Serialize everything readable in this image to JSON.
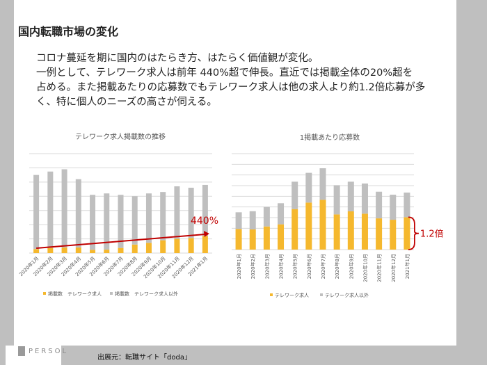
{
  "header": {
    "title": "国内転職市場の変化"
  },
  "body_lines": [
    "コロナ蔓延を期に国内のはたらき方、はたらく価値観が変化。",
    "一例として、テレワーク求人は前年 440%超で伸長。直近では掲載全体の20%超を",
    "占める。また掲載あたりの応募数でもテレワーク求人は他の求人より約1.2倍応募が多",
    "く、特に個人のニーズの高さが伺える。"
  ],
  "colors": {
    "telework": "#f5b82e",
    "other": "#bfbfbf",
    "annotation": "#c00000",
    "grid": "#d9d9d9"
  },
  "chart_data": [
    {
      "type": "bar",
      "stacked": true,
      "title": "テレワーク求人掲載数の推移",
      "categories": [
        "2020年1月",
        "2020年2月",
        "2020年3月",
        "2020年4月",
        "2020年5月",
        "2020年6月",
        "2020年7月",
        "2020年8月",
        "2020年9月",
        "2020年10月",
        "2020年11月",
        "2020年12月",
        "2021年1月"
      ],
      "series": [
        {
          "name": "掲載数　テレワーク求人",
          "values": [
            0.28,
            0.36,
            0.39,
            0.39,
            0.23,
            0.24,
            0.36,
            0.6,
            0.72,
            0.9,
            1.0,
            1.06,
            1.2
          ]
        },
        {
          "name": "掲載数　テレワーク求人以外",
          "values": [
            5.22,
            5.38,
            5.51,
            4.81,
            3.87,
            3.96,
            3.74,
            3.4,
            3.48,
            3.4,
            3.7,
            3.54,
            3.6
          ]
        }
      ],
      "ylim": [
        0,
        7
      ],
      "grid": true,
      "legend": "bottom",
      "tick_rotation": "45deg",
      "annotation": {
        "text": "440%",
        "type": "trend-arrow"
      }
    },
    {
      "type": "bar",
      "stacked": true,
      "title": "1掲載あたり応募数",
      "categories": [
        "2020年1月",
        "2020年2月",
        "2020年3月",
        "2020年4月",
        "2020年5月",
        "2020年6月",
        "2020年7月",
        "2020年8月",
        "2020年9月",
        "2020年10月",
        "2020年11月",
        "2020年12月",
        "2021年1月"
      ],
      "series": [
        {
          "name": "テレワーク求人",
          "values": [
            1.93,
            1.89,
            2.17,
            2.37,
            3.8,
            4.41,
            4.67,
            3.3,
            3.59,
            3.37,
            2.93,
            2.8,
            3.04
          ]
        },
        {
          "name": "テレワーク求人以外",
          "values": [
            1.57,
            1.71,
            1.83,
            1.98,
            2.57,
            2.79,
            2.96,
            2.74,
            2.78,
            2.83,
            2.5,
            2.35,
            2.31
          ]
        }
      ],
      "ylim": [
        0,
        9
      ],
      "grid": true,
      "legend": "bottom",
      "tick_rotation": "vertical",
      "annotation": {
        "text": "1.2倍",
        "type": "brace"
      }
    }
  ],
  "footer": {
    "logo": "PERSOL",
    "source": "出展元：転職サイト「doda」"
  }
}
